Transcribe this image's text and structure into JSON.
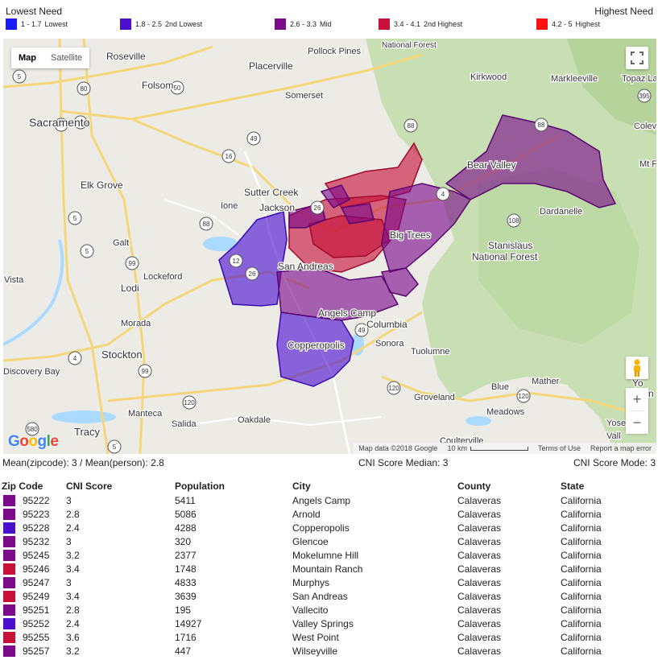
{
  "legend": {
    "low_label": "Lowest Need",
    "high_label": "Highest Need",
    "items": [
      {
        "range": "1 - 1.7",
        "label": "Lowest",
        "color": "#1a1aff"
      },
      {
        "range": "1.8 - 2.5",
        "label": "2nd Lowest",
        "color": "#4b0fd0"
      },
      {
        "range": "2.6 - 3.3",
        "label": "Mid",
        "color": "#7a0a8a"
      },
      {
        "range": "3.4 - 4.1",
        "label": "2nd Highest",
        "color": "#c8103a"
      },
      {
        "range": "4.2 - 5",
        "label": "Highest",
        "color": "#ff1010"
      }
    ]
  },
  "map": {
    "type_buttons": [
      "Map",
      "Satellite"
    ],
    "logo": "Google",
    "attribution": {
      "data": "Map data ©2018 Google",
      "scale": "10 km",
      "terms": "Terms of Use",
      "report": "Report a map error"
    },
    "places": [
      "Roseville",
      "Folsom",
      "Placerville",
      "Pollock Pines",
      "National Forest",
      "Kirkwood",
      "Markleeville",
      "Topaz Lak",
      "Sacramento",
      "Somerset",
      "Colevi",
      "Mt F",
      "Bear Valley",
      "Elk Grove",
      "Sutter Creek",
      "Ione",
      "Jackson",
      "Dardanelle",
      "Big Trees",
      "Galt",
      "San Andreas",
      "Stanislaus",
      "National Forest",
      "Lockeford",
      "Vista",
      "Lodi",
      "Angels Camp",
      "Columbia",
      "Morada",
      "Copperopolis",
      "Sonora",
      "Stockton",
      "Tuolumne",
      "Discovery Bay",
      "Mather",
      "Yo",
      "Nation",
      "Groveland",
      "Blue",
      "Meadows",
      "Manteca",
      "Oakdale",
      "Tracy",
      "Salida",
      "Coulterville",
      "Yose",
      "Vall"
    ],
    "route_shields": [
      "80",
      "50",
      "5",
      "99",
      "16",
      "49",
      "88",
      "4",
      "5",
      "88",
      "99",
      "5",
      "12",
      "26",
      "108",
      "49",
      "4",
      "99",
      "120",
      "120",
      "580",
      "5",
      "5",
      "26",
      "395",
      "88",
      "120"
    ]
  },
  "stats": {
    "mean": "Mean(zipcode): 3 / Mean(person): 2.8",
    "median": "CNI Score Median: 3",
    "mode": "CNI Score Mode: 3"
  },
  "table": {
    "headers": [
      "Zip Code",
      "CNI Score",
      "Population",
      "City",
      "County",
      "State"
    ],
    "rows": [
      {
        "color": "#7a0a8a",
        "zip": "95222",
        "score": "3",
        "pop": "5411",
        "city": "Angels Camp",
        "county": "Calaveras",
        "state": "California"
      },
      {
        "color": "#7a0a8a",
        "zip": "95223",
        "score": "2.8",
        "pop": "5086",
        "city": "Arnold",
        "county": "Calaveras",
        "state": "California"
      },
      {
        "color": "#4b0fd0",
        "zip": "95228",
        "score": "2.4",
        "pop": "4288",
        "city": "Copperopolis",
        "county": "Calaveras",
        "state": "California"
      },
      {
        "color": "#7a0a8a",
        "zip": "95232",
        "score": "3",
        "pop": "320",
        "city": "Glencoe",
        "county": "Calaveras",
        "state": "California"
      },
      {
        "color": "#7a0a8a",
        "zip": "95245",
        "score": "3.2",
        "pop": "2377",
        "city": "Mokelumne Hill",
        "county": "Calaveras",
        "state": "California"
      },
      {
        "color": "#c8103a",
        "zip": "95246",
        "score": "3.4",
        "pop": "1748",
        "city": "Mountain Ranch",
        "county": "Calaveras",
        "state": "California"
      },
      {
        "color": "#7a0a8a",
        "zip": "95247",
        "score": "3",
        "pop": "4833",
        "city": "Murphys",
        "county": "Calaveras",
        "state": "California"
      },
      {
        "color": "#c8103a",
        "zip": "95249",
        "score": "3.4",
        "pop": "3639",
        "city": "San Andreas",
        "county": "Calaveras",
        "state": "California"
      },
      {
        "color": "#7a0a8a",
        "zip": "95251",
        "score": "2.8",
        "pop": "195",
        "city": "Vallecito",
        "county": "Calaveras",
        "state": "California"
      },
      {
        "color": "#4b0fd0",
        "zip": "95252",
        "score": "2.4",
        "pop": "14927",
        "city": "Valley Springs",
        "county": "Calaveras",
        "state": "California"
      },
      {
        "color": "#c8103a",
        "zip": "95255",
        "score": "3.6",
        "pop": "1716",
        "city": "West Point",
        "county": "Calaveras",
        "state": "California"
      },
      {
        "color": "#7a0a8a",
        "zip": "95257",
        "score": "3.2",
        "pop": "447",
        "city": "Wilseyville",
        "county": "Calaveras",
        "state": "California"
      }
    ]
  }
}
